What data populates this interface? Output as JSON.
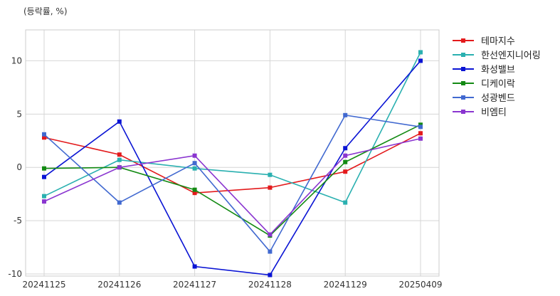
{
  "chart_data": {
    "type": "line",
    "unit_label": "(등락률, %)",
    "categories": [
      "20241125",
      "20241126",
      "20241127",
      "20241128",
      "20241129",
      "20250409"
    ],
    "y_ticks": [
      10,
      5,
      0,
      -5,
      -10
    ],
    "ylim": [
      -10.2,
      12.9
    ],
    "grid": true,
    "legend_position": "right",
    "series": [
      {
        "name": "테마지수",
        "color": "#e31a1c",
        "values": [
          2.8,
          1.2,
          -2.4,
          -1.9,
          -0.4,
          3.2
        ]
      },
      {
        "name": "한선엔지니어링",
        "color": "#2ab0b0",
        "values": [
          -2.7,
          0.7,
          -0.1,
          -0.7,
          -3.3,
          10.8
        ]
      },
      {
        "name": "화성밸브",
        "color": "#0a14d4",
        "values": [
          -0.9,
          4.3,
          -9.3,
          -10.1,
          1.8,
          10.0
        ]
      },
      {
        "name": "디케이락",
        "color": "#138a13",
        "values": [
          -0.1,
          0.0,
          -2.1,
          -6.4,
          0.5,
          4.0
        ]
      },
      {
        "name": "성광벤드",
        "color": "#4169d0",
        "values": [
          3.1,
          -3.3,
          0.4,
          -7.9,
          4.9,
          3.8
        ]
      },
      {
        "name": "비엠티",
        "color": "#8a35d0",
        "values": [
          -3.2,
          0.0,
          1.1,
          -6.3,
          1.1,
          2.7
        ]
      }
    ]
  }
}
